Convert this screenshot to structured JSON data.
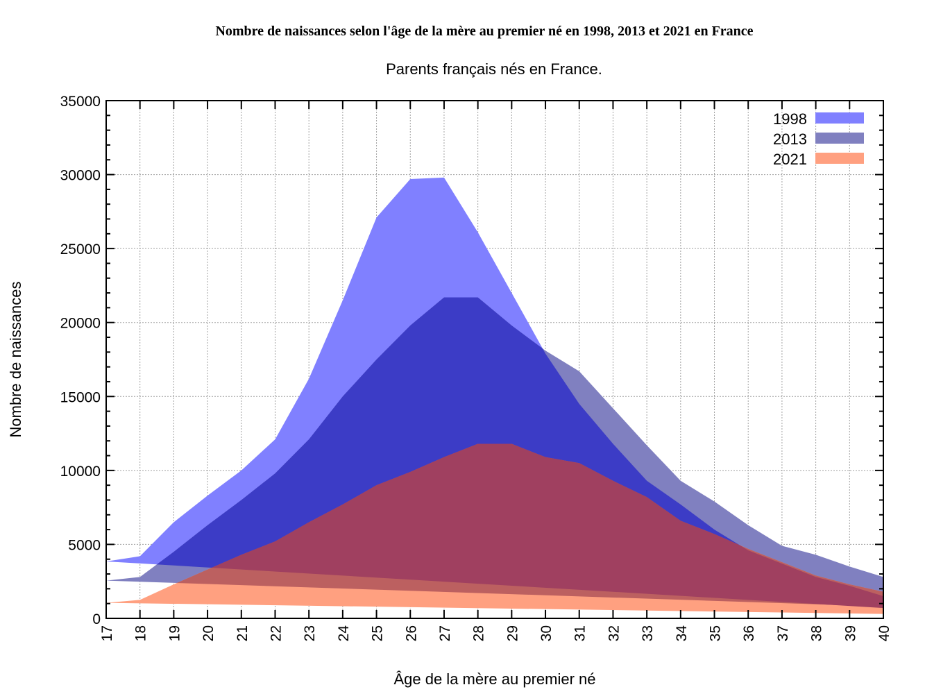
{
  "chart_data": {
    "type": "area",
    "title": "Nombre de naissances selon l'âge de la mère au premier né en 1998, 2013 et 2021 en France",
    "subtitle": "Parents français nés en France.",
    "xlabel": "Âge de la mère au premier né",
    "ylabel": "Nombre de naissances",
    "xlim": [
      17,
      40
    ],
    "ylim": [
      0,
      35000
    ],
    "grid": true,
    "legend_position": "top-right",
    "x": [
      17,
      18,
      19,
      20,
      21,
      22,
      23,
      24,
      25,
      26,
      27,
      28,
      29,
      30,
      31,
      32,
      33,
      34,
      35,
      36,
      37,
      38,
      39,
      40
    ],
    "x_tick_labels": [
      "17",
      "18",
      "19",
      "20",
      "21",
      "22",
      "23",
      "24",
      "25",
      "26",
      "27",
      "28",
      "29",
      "30",
      "31",
      "32",
      "33",
      "34",
      "35",
      "36",
      "37",
      "38",
      "39",
      "40"
    ],
    "y_tick_labels": [
      "0",
      "5000",
      "10000",
      "15000",
      "20000",
      "25000",
      "30000",
      "35000"
    ],
    "y_ticks": [
      0,
      5000,
      10000,
      15000,
      20000,
      25000,
      30000,
      35000
    ],
    "series": [
      {
        "name": "1998",
        "color": "#8080ff",
        "values": [
          3850,
          4200,
          6500,
          8300,
          10000,
          12100,
          16200,
          21500,
          27100,
          29700,
          29800,
          26100,
          22000,
          17900,
          14500,
          11800,
          9300,
          7700,
          6000,
          4600,
          3700,
          2800,
          2200,
          1500
        ],
        "closing_value_at_xmax": 700
      },
      {
        "name": "2013",
        "color": "#8080c0",
        "values": [
          2550,
          2800,
          4500,
          6300,
          8000,
          9800,
          12100,
          15000,
          17500,
          19800,
          21700,
          21700,
          19800,
          18100,
          16700,
          14200,
          11700,
          9300,
          7900,
          6300,
          4900,
          4300,
          3500,
          2800
        ],
        "closing_value_at_xmax": 800
      },
      {
        "name": "2021",
        "color": "#ffa080",
        "values": [
          1050,
          1250,
          2300,
          3300,
          4300,
          5200,
          6500,
          7700,
          9000,
          9900,
          10900,
          11800,
          11800,
          10900,
          10500,
          9300,
          8200,
          6600,
          5700,
          4700,
          3800,
          2900,
          2300,
          1800
        ],
        "closing_value_at_xmax": 300
      }
    ],
    "overlap_colors": {
      "1998_2013": "#3c3cc6",
      "1998_2021": "#a04060",
      "2013_2021": "#bc6060",
      "all": "#a04060"
    }
  }
}
